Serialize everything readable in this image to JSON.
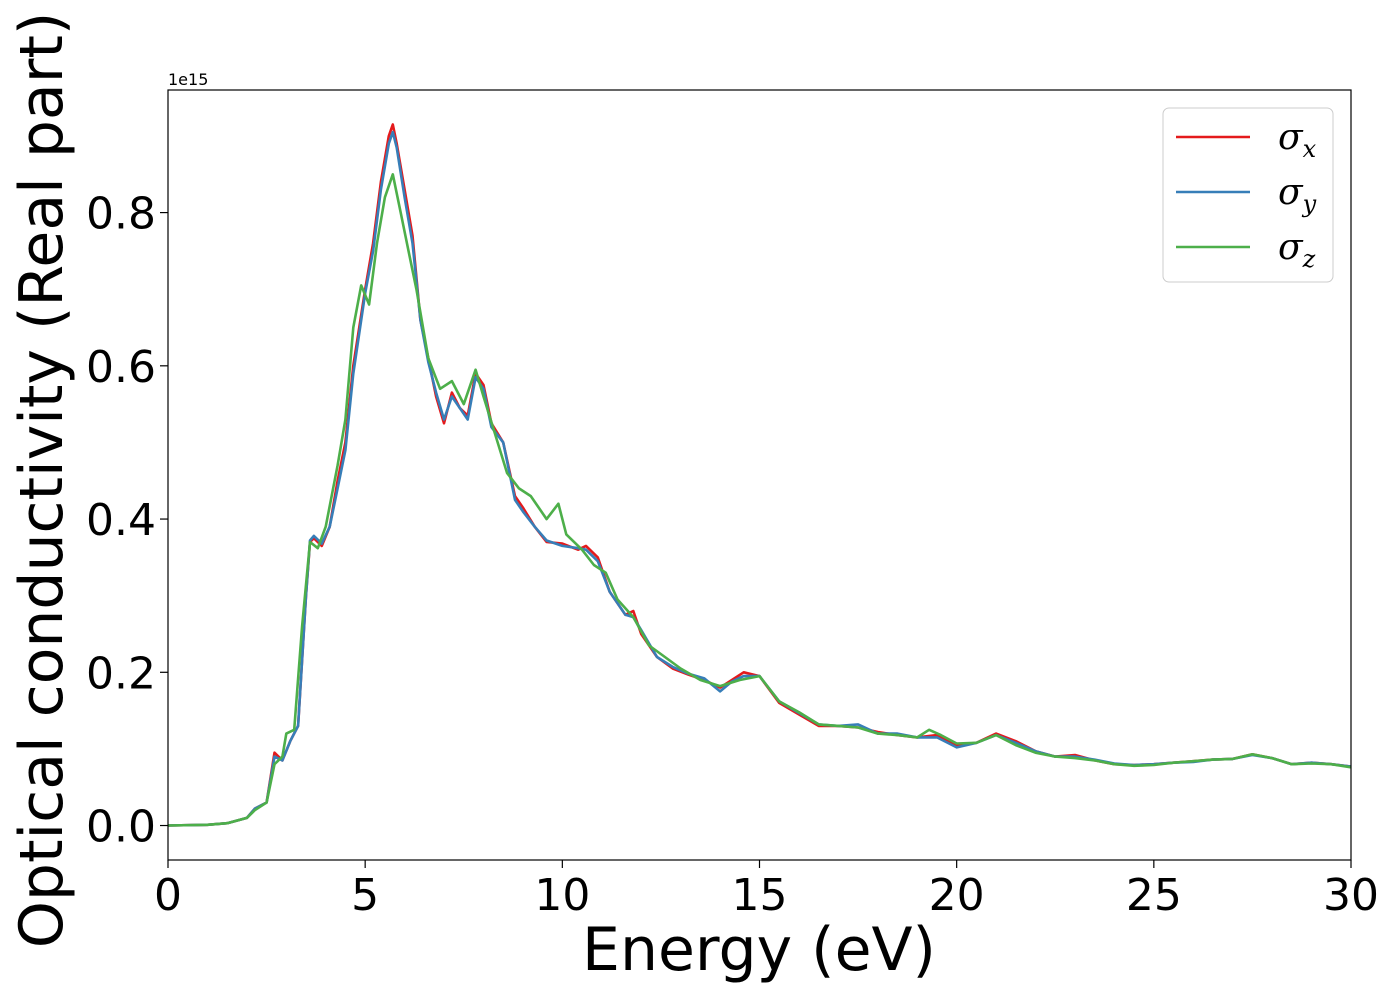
{
  "chart_data": {
    "type": "line",
    "xlabel": "Energy (eV)",
    "ylabel": "Optical conductivity (Real part)",
    "y_offset_label": "1e15",
    "xlim": [
      0,
      30
    ],
    "ylim": [
      -0.045,
      0.96
    ],
    "x_ticks": [
      0,
      5,
      10,
      15,
      20,
      25,
      30
    ],
    "x_tick_labels": [
      "0",
      "5",
      "10",
      "15",
      "20",
      "25",
      "30"
    ],
    "y_ticks": [
      0.0,
      0.2,
      0.4,
      0.6,
      0.8
    ],
    "y_tick_labels": [
      "0.0",
      "0.2",
      "0.4",
      "0.6",
      "0.8"
    ],
    "grid": false,
    "legend_position": "top-right",
    "colors": {
      "sigma_x": "#e41a1c",
      "sigma_y": "#377eb8",
      "sigma_z": "#4daf4a"
    },
    "series": [
      {
        "name": "σx",
        "symbol": "σ",
        "subscript": "x",
        "color": "#e41a1c",
        "points": [
          [
            0,
            0
          ],
          [
            1,
            0.001
          ],
          [
            1.5,
            0.003
          ],
          [
            2,
            0.01
          ],
          [
            2.2,
            0.022
          ],
          [
            2.5,
            0.03
          ],
          [
            2.7,
            0.095
          ],
          [
            2.9,
            0.085
          ],
          [
            3.1,
            0.11
          ],
          [
            3.3,
            0.13
          ],
          [
            3.5,
            0.3
          ],
          [
            3.6,
            0.37
          ],
          [
            3.7,
            0.375
          ],
          [
            3.9,
            0.365
          ],
          [
            4.1,
            0.39
          ],
          [
            4.3,
            0.45
          ],
          [
            4.5,
            0.5
          ],
          [
            4.7,
            0.6
          ],
          [
            5.0,
            0.7
          ],
          [
            5.2,
            0.76
          ],
          [
            5.4,
            0.84
          ],
          [
            5.6,
            0.9
          ],
          [
            5.7,
            0.915
          ],
          [
            5.8,
            0.89
          ],
          [
            6.0,
            0.83
          ],
          [
            6.2,
            0.77
          ],
          [
            6.4,
            0.66
          ],
          [
            6.6,
            0.61
          ],
          [
            6.8,
            0.56
          ],
          [
            7.0,
            0.525
          ],
          [
            7.2,
            0.565
          ],
          [
            7.4,
            0.545
          ],
          [
            7.6,
            0.535
          ],
          [
            7.8,
            0.59
          ],
          [
            8.0,
            0.575
          ],
          [
            8.2,
            0.525
          ],
          [
            8.5,
            0.5
          ],
          [
            8.8,
            0.43
          ],
          [
            9.0,
            0.415
          ],
          [
            9.3,
            0.39
          ],
          [
            9.6,
            0.37
          ],
          [
            10.0,
            0.368
          ],
          [
            10.4,
            0.36
          ],
          [
            10.6,
            0.365
          ],
          [
            10.9,
            0.35
          ],
          [
            11.2,
            0.305
          ],
          [
            11.6,
            0.275
          ],
          [
            11.8,
            0.28
          ],
          [
            12.0,
            0.25
          ],
          [
            12.4,
            0.22
          ],
          [
            12.8,
            0.205
          ],
          [
            13.2,
            0.197
          ],
          [
            13.6,
            0.19
          ],
          [
            14.0,
            0.18
          ],
          [
            14.3,
            0.19
          ],
          [
            14.6,
            0.2
          ],
          [
            15.0,
            0.195
          ],
          [
            15.5,
            0.16
          ],
          [
            16.0,
            0.145
          ],
          [
            16.5,
            0.13
          ],
          [
            17.0,
            0.13
          ],
          [
            17.5,
            0.128
          ],
          [
            18.0,
            0.122
          ],
          [
            18.5,
            0.118
          ],
          [
            19.0,
            0.115
          ],
          [
            19.5,
            0.118
          ],
          [
            20.0,
            0.105
          ],
          [
            20.5,
            0.108
          ],
          [
            21.0,
            0.12
          ],
          [
            21.5,
            0.11
          ],
          [
            22.0,
            0.097
          ],
          [
            22.5,
            0.09
          ],
          [
            23.0,
            0.092
          ],
          [
            23.5,
            0.085
          ],
          [
            24.0,
            0.08
          ],
          [
            24.5,
            0.079
          ],
          [
            25.0,
            0.08
          ],
          [
            25.5,
            0.082
          ],
          [
            26.0,
            0.084
          ],
          [
            26.5,
            0.086
          ],
          [
            27.0,
            0.087
          ],
          [
            27.5,
            0.093
          ],
          [
            28.0,
            0.088
          ],
          [
            28.5,
            0.08
          ],
          [
            29.0,
            0.082
          ],
          [
            29.5,
            0.08
          ],
          [
            30.0,
            0.077
          ]
        ]
      },
      {
        "name": "σy",
        "symbol": "σ",
        "subscript": "y",
        "color": "#377eb8",
        "points": [
          [
            0,
            0
          ],
          [
            1,
            0.001
          ],
          [
            1.5,
            0.003
          ],
          [
            2,
            0.01
          ],
          [
            2.2,
            0.022
          ],
          [
            2.5,
            0.03
          ],
          [
            2.7,
            0.09
          ],
          [
            2.9,
            0.085
          ],
          [
            3.1,
            0.11
          ],
          [
            3.3,
            0.13
          ],
          [
            3.5,
            0.3
          ],
          [
            3.6,
            0.372
          ],
          [
            3.7,
            0.378
          ],
          [
            3.9,
            0.368
          ],
          [
            4.1,
            0.39
          ],
          [
            4.3,
            0.44
          ],
          [
            4.5,
            0.49
          ],
          [
            4.7,
            0.59
          ],
          [
            5.0,
            0.695
          ],
          [
            5.2,
            0.75
          ],
          [
            5.4,
            0.83
          ],
          [
            5.6,
            0.89
          ],
          [
            5.7,
            0.905
          ],
          [
            5.8,
            0.885
          ],
          [
            6.0,
            0.82
          ],
          [
            6.2,
            0.76
          ],
          [
            6.4,
            0.66
          ],
          [
            6.6,
            0.605
          ],
          [
            6.8,
            0.565
          ],
          [
            7.0,
            0.53
          ],
          [
            7.2,
            0.56
          ],
          [
            7.4,
            0.545
          ],
          [
            7.6,
            0.53
          ],
          [
            7.8,
            0.585
          ],
          [
            8.0,
            0.57
          ],
          [
            8.2,
            0.52
          ],
          [
            8.5,
            0.5
          ],
          [
            8.8,
            0.425
          ],
          [
            9.0,
            0.41
          ],
          [
            9.3,
            0.39
          ],
          [
            9.6,
            0.372
          ],
          [
            10.0,
            0.365
          ],
          [
            10.4,
            0.362
          ],
          [
            10.6,
            0.36
          ],
          [
            10.9,
            0.345
          ],
          [
            11.2,
            0.305
          ],
          [
            11.6,
            0.275
          ],
          [
            11.8,
            0.272
          ],
          [
            12.0,
            0.255
          ],
          [
            12.4,
            0.22
          ],
          [
            12.8,
            0.207
          ],
          [
            13.2,
            0.198
          ],
          [
            13.6,
            0.192
          ],
          [
            14.0,
            0.175
          ],
          [
            14.3,
            0.188
          ],
          [
            14.6,
            0.195
          ],
          [
            15.0,
            0.195
          ],
          [
            15.5,
            0.162
          ],
          [
            16.0,
            0.147
          ],
          [
            16.5,
            0.132
          ],
          [
            17.0,
            0.13
          ],
          [
            17.5,
            0.132
          ],
          [
            18.0,
            0.12
          ],
          [
            18.5,
            0.12
          ],
          [
            19.0,
            0.115
          ],
          [
            19.5,
            0.115
          ],
          [
            20.0,
            0.102
          ],
          [
            20.5,
            0.108
          ],
          [
            21.0,
            0.118
          ],
          [
            21.5,
            0.108
          ],
          [
            22.0,
            0.097
          ],
          [
            22.5,
            0.09
          ],
          [
            23.0,
            0.09
          ],
          [
            23.5,
            0.086
          ],
          [
            24.0,
            0.081
          ],
          [
            24.5,
            0.079
          ],
          [
            25.0,
            0.08
          ],
          [
            25.5,
            0.082
          ],
          [
            26.0,
            0.083
          ],
          [
            26.5,
            0.086
          ],
          [
            27.0,
            0.087
          ],
          [
            27.5,
            0.092
          ],
          [
            28.0,
            0.088
          ],
          [
            28.5,
            0.08
          ],
          [
            29.0,
            0.082
          ],
          [
            29.5,
            0.08
          ],
          [
            30.0,
            0.077
          ]
        ]
      },
      {
        "name": "σz",
        "symbol": "σ",
        "subscript": "z",
        "color": "#4daf4a",
        "points": [
          [
            0,
            0
          ],
          [
            1,
            0.001
          ],
          [
            1.5,
            0.003
          ],
          [
            2,
            0.01
          ],
          [
            2.2,
            0.02
          ],
          [
            2.5,
            0.03
          ],
          [
            2.7,
            0.08
          ],
          [
            2.9,
            0.09
          ],
          [
            3.0,
            0.12
          ],
          [
            3.2,
            0.125
          ],
          [
            3.4,
            0.26
          ],
          [
            3.6,
            0.37
          ],
          [
            3.8,
            0.362
          ],
          [
            4.0,
            0.39
          ],
          [
            4.3,
            0.47
          ],
          [
            4.5,
            0.53
          ],
          [
            4.7,
            0.65
          ],
          [
            4.9,
            0.705
          ],
          [
            5.1,
            0.68
          ],
          [
            5.3,
            0.76
          ],
          [
            5.5,
            0.82
          ],
          [
            5.7,
            0.85
          ],
          [
            5.9,
            0.8
          ],
          [
            6.1,
            0.75
          ],
          [
            6.3,
            0.7
          ],
          [
            6.6,
            0.61
          ],
          [
            6.9,
            0.57
          ],
          [
            7.2,
            0.58
          ],
          [
            7.5,
            0.55
          ],
          [
            7.8,
            0.595
          ],
          [
            8.0,
            0.56
          ],
          [
            8.3,
            0.51
          ],
          [
            8.6,
            0.46
          ],
          [
            8.9,
            0.44
          ],
          [
            9.2,
            0.43
          ],
          [
            9.6,
            0.4
          ],
          [
            9.9,
            0.42
          ],
          [
            10.1,
            0.38
          ],
          [
            10.5,
            0.36
          ],
          [
            10.8,
            0.34
          ],
          [
            11.1,
            0.33
          ],
          [
            11.4,
            0.295
          ],
          [
            11.8,
            0.272
          ],
          [
            12.2,
            0.235
          ],
          [
            12.6,
            0.22
          ],
          [
            13.0,
            0.205
          ],
          [
            13.5,
            0.19
          ],
          [
            14.0,
            0.182
          ],
          [
            14.5,
            0.19
          ],
          [
            15.0,
            0.195
          ],
          [
            15.5,
            0.162
          ],
          [
            16.0,
            0.148
          ],
          [
            16.5,
            0.132
          ],
          [
            17.0,
            0.13
          ],
          [
            17.5,
            0.128
          ],
          [
            18.0,
            0.12
          ],
          [
            18.5,
            0.118
          ],
          [
            19.0,
            0.115
          ],
          [
            19.3,
            0.125
          ],
          [
            19.6,
            0.118
          ],
          [
            20.0,
            0.107
          ],
          [
            20.5,
            0.108
          ],
          [
            21.0,
            0.118
          ],
          [
            21.5,
            0.105
          ],
          [
            22.0,
            0.095
          ],
          [
            22.5,
            0.09
          ],
          [
            23.0,
            0.088
          ],
          [
            23.5,
            0.085
          ],
          [
            24.0,
            0.08
          ],
          [
            24.5,
            0.078
          ],
          [
            25.0,
            0.079
          ],
          [
            25.5,
            0.082
          ],
          [
            26.0,
            0.084
          ],
          [
            26.5,
            0.086
          ],
          [
            27.0,
            0.087
          ],
          [
            27.5,
            0.093
          ],
          [
            28.0,
            0.088
          ],
          [
            28.5,
            0.08
          ],
          [
            29.0,
            0.081
          ],
          [
            29.5,
            0.08
          ],
          [
            30.0,
            0.076
          ]
        ]
      }
    ]
  }
}
